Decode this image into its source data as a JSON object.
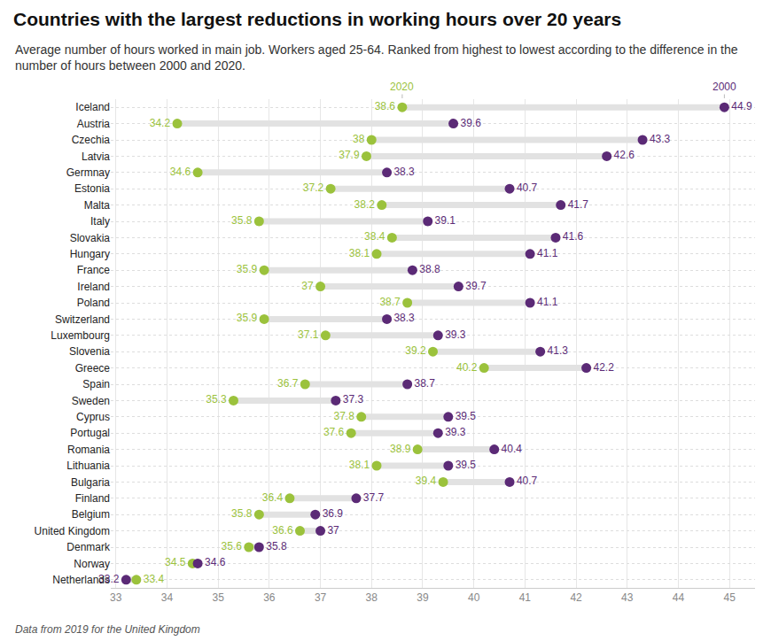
{
  "chart_data": {
    "type": "dumbbell",
    "title": "Countries with the largest reductions in working hours over 20 years",
    "subtitle": "Average number of hours worked in main job. Workers aged 25-64. Ranked from highest to lowest according to the difference in the number of hours between 2000 and 2020.",
    "footnote": "Data from 2019 for the United Kingdom",
    "orientation": "horizontal",
    "categories": [
      "Iceland",
      "Austria",
      "Czechia",
      "Latvia",
      "Germnay",
      "Estonia",
      "Malta",
      "Italy",
      "Slovakia",
      "Hungary",
      "France",
      "Ireland",
      "Poland",
      "Switzerland",
      "Luxembourg",
      "Slovenia",
      "Greece",
      "Spain",
      "Sweden",
      "Cyprus",
      "Portugal",
      "Romania",
      "Lithuania",
      "Bulgaria",
      "Finland",
      "Belgium",
      "United Kingdom",
      "Denmark",
      "Norway",
      "Netherlands"
    ],
    "series": [
      {
        "name": "2020",
        "color": "#9bc23c",
        "values": [
          38.6,
          34.2,
          38,
          37.9,
          34.6,
          37.2,
          38.2,
          35.8,
          38.4,
          38.1,
          35.9,
          37,
          38.7,
          35.9,
          37.1,
          39.2,
          40.2,
          36.7,
          35.3,
          37.8,
          37.6,
          38.9,
          38.1,
          39.4,
          36.4,
          35.8,
          36.6,
          35.6,
          34.5,
          33.4
        ]
      },
      {
        "name": "2000",
        "color": "#5b2a76",
        "values": [
          44.9,
          39.6,
          43.3,
          42.6,
          38.3,
          40.7,
          41.7,
          39.1,
          41.6,
          41.1,
          38.8,
          39.7,
          41.1,
          38.3,
          39.3,
          41.3,
          42.2,
          38.7,
          37.3,
          39.5,
          39.3,
          40.4,
          39.5,
          40.7,
          37.7,
          36.9,
          37,
          35.8,
          34.6,
          33.2
        ]
      }
    ],
    "xlim": [
      32.9,
      45.5
    ],
    "xticks": [
      33,
      34,
      35,
      36,
      37,
      38,
      39,
      40,
      41,
      42,
      43,
      44,
      45
    ],
    "grid": true,
    "data_labels": true
  }
}
